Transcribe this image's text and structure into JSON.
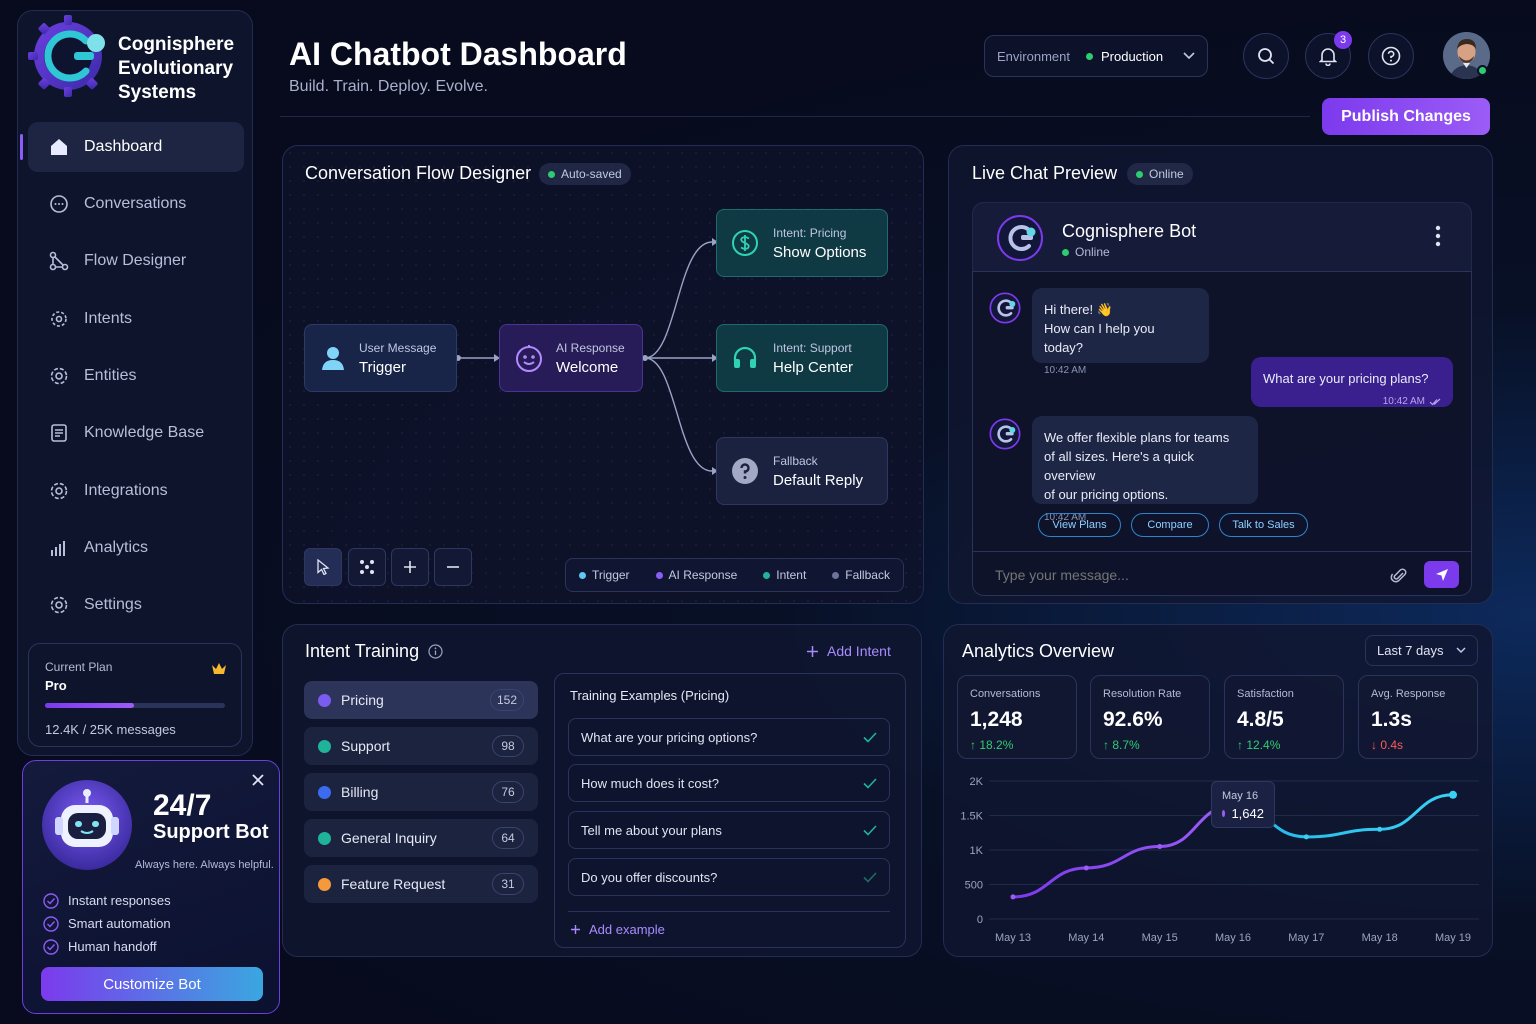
{
  "brand": {
    "line1": "Cognisphere",
    "line2": "Evolutionary",
    "line3": "Systems"
  },
  "sidebar": {
    "items": [
      {
        "label": "Dashboard",
        "icon": "home-icon"
      },
      {
        "label": "Conversations",
        "icon": "chat-icon"
      },
      {
        "label": "Flow Designer",
        "icon": "flow-icon"
      },
      {
        "label": "Intents",
        "icon": "target-icon"
      },
      {
        "label": "Entities",
        "icon": "gear-icon"
      },
      {
        "label": "Knowledge Base",
        "icon": "document-icon"
      },
      {
        "label": "Integrations",
        "icon": "integration-icon"
      },
      {
        "label": "Analytics",
        "icon": "bar-chart-icon"
      },
      {
        "label": "Settings",
        "icon": "settings-icon"
      }
    ],
    "plan": {
      "label": "Current Plan",
      "name": "Pro",
      "usage": "12.4K / 25K messages",
      "usage_fraction": 0.496
    }
  },
  "bot_card": {
    "title1": "24/7",
    "title2": "Support Bot",
    "tagline": "Always here. Always helpful.",
    "features": [
      "Instant responses",
      "Smart automation",
      "Human handoff"
    ],
    "cta": "Customize Bot"
  },
  "header": {
    "title": "AI Chatbot Dashboard",
    "subtitle": "Build. Train. Deploy. Evolve.",
    "env_label": "Environment",
    "env_value": "Production",
    "notifications": "3",
    "publish": "Publish Changes"
  },
  "flow": {
    "title": "Conversation Flow Designer",
    "status": "Auto-saved",
    "nodes": [
      {
        "kind": "User Message",
        "name": "Trigger"
      },
      {
        "kind": "AI Response",
        "name": "Welcome"
      },
      {
        "kind": "Intent: Pricing",
        "name": "Show Options"
      },
      {
        "kind": "Intent: Support",
        "name": "Help Center"
      },
      {
        "kind": "Fallback",
        "name": "Default Reply"
      }
    ],
    "legend": [
      "Trigger",
      "AI Response",
      "Intent",
      "Fallback"
    ],
    "colors": {
      "trigger": "#5fc8f5",
      "ai": "#8b5cf6",
      "intent": "#1fb39a",
      "fallback": "#6b7499"
    }
  },
  "chat": {
    "title": "Live Chat Preview",
    "status": "Online",
    "bot_name": "Cognisphere Bot",
    "bot_status": "Online",
    "messages": [
      {
        "line1": "Hi there! 👋",
        "line2": "How can I help you today?",
        "time": "10:42 AM"
      },
      {
        "text": "What are your pricing plans?",
        "time": "10:42 AM"
      },
      {
        "line1": "We offer flexible plans for teams",
        "line2": "of all sizes. Here's a quick overview",
        "line3": "of our pricing options.",
        "time": "10:42 AM"
      }
    ],
    "quick_replies": [
      "View Plans",
      "Compare",
      "Talk to Sales"
    ],
    "placeholder": "Type your message..."
  },
  "intents": {
    "title": "Intent Training",
    "add": "Add Intent",
    "list": [
      {
        "name": "Pricing",
        "count": "152",
        "color": "#7c5cf0"
      },
      {
        "name": "Support",
        "count": "98",
        "color": "#1fb39a"
      },
      {
        "name": "Billing",
        "count": "76",
        "color": "#3b6cf0"
      },
      {
        "name": "General Inquiry",
        "count": "64",
        "color": "#1fb39a"
      },
      {
        "name": "Feature Request",
        "count": "31",
        "color": "#f59a3b"
      }
    ],
    "examples_title": "Training Examples (Pricing)",
    "examples": [
      "What are your pricing options?",
      "How much does it cost?",
      "Tell me about your plans",
      "Do you offer discounts?"
    ],
    "add_example": "Add example"
  },
  "analytics": {
    "title": "Analytics Overview",
    "range": "Last 7 days",
    "stats": [
      {
        "label": "Conversations",
        "value": "1,248",
        "delta": "18.2%",
        "dir": "up"
      },
      {
        "label": "Resolution Rate",
        "value": "92.6%",
        "delta": "8.7%",
        "dir": "up"
      },
      {
        "label": "Satisfaction",
        "value": "4.8/5",
        "delta": "12.4%",
        "dir": "up"
      },
      {
        "label": "Avg. Response",
        "value": "1.3s",
        "delta": "0.4s",
        "dir": "down"
      }
    ],
    "tooltip": {
      "date": "May 16",
      "value": "1,642"
    }
  },
  "chart_data": {
    "type": "line",
    "x": [
      "May 13",
      "May 14",
      "May 15",
      "May 16",
      "May 17",
      "May 18",
      "May 19"
    ],
    "y_ticks": [
      "0",
      "500",
      "1K",
      "1.5K",
      "2K"
    ],
    "ylim": [
      0,
      2000
    ],
    "series": [
      {
        "values": [
          320,
          740,
          1050,
          1642,
          1190,
          1300,
          1800
        ]
      }
    ]
  }
}
